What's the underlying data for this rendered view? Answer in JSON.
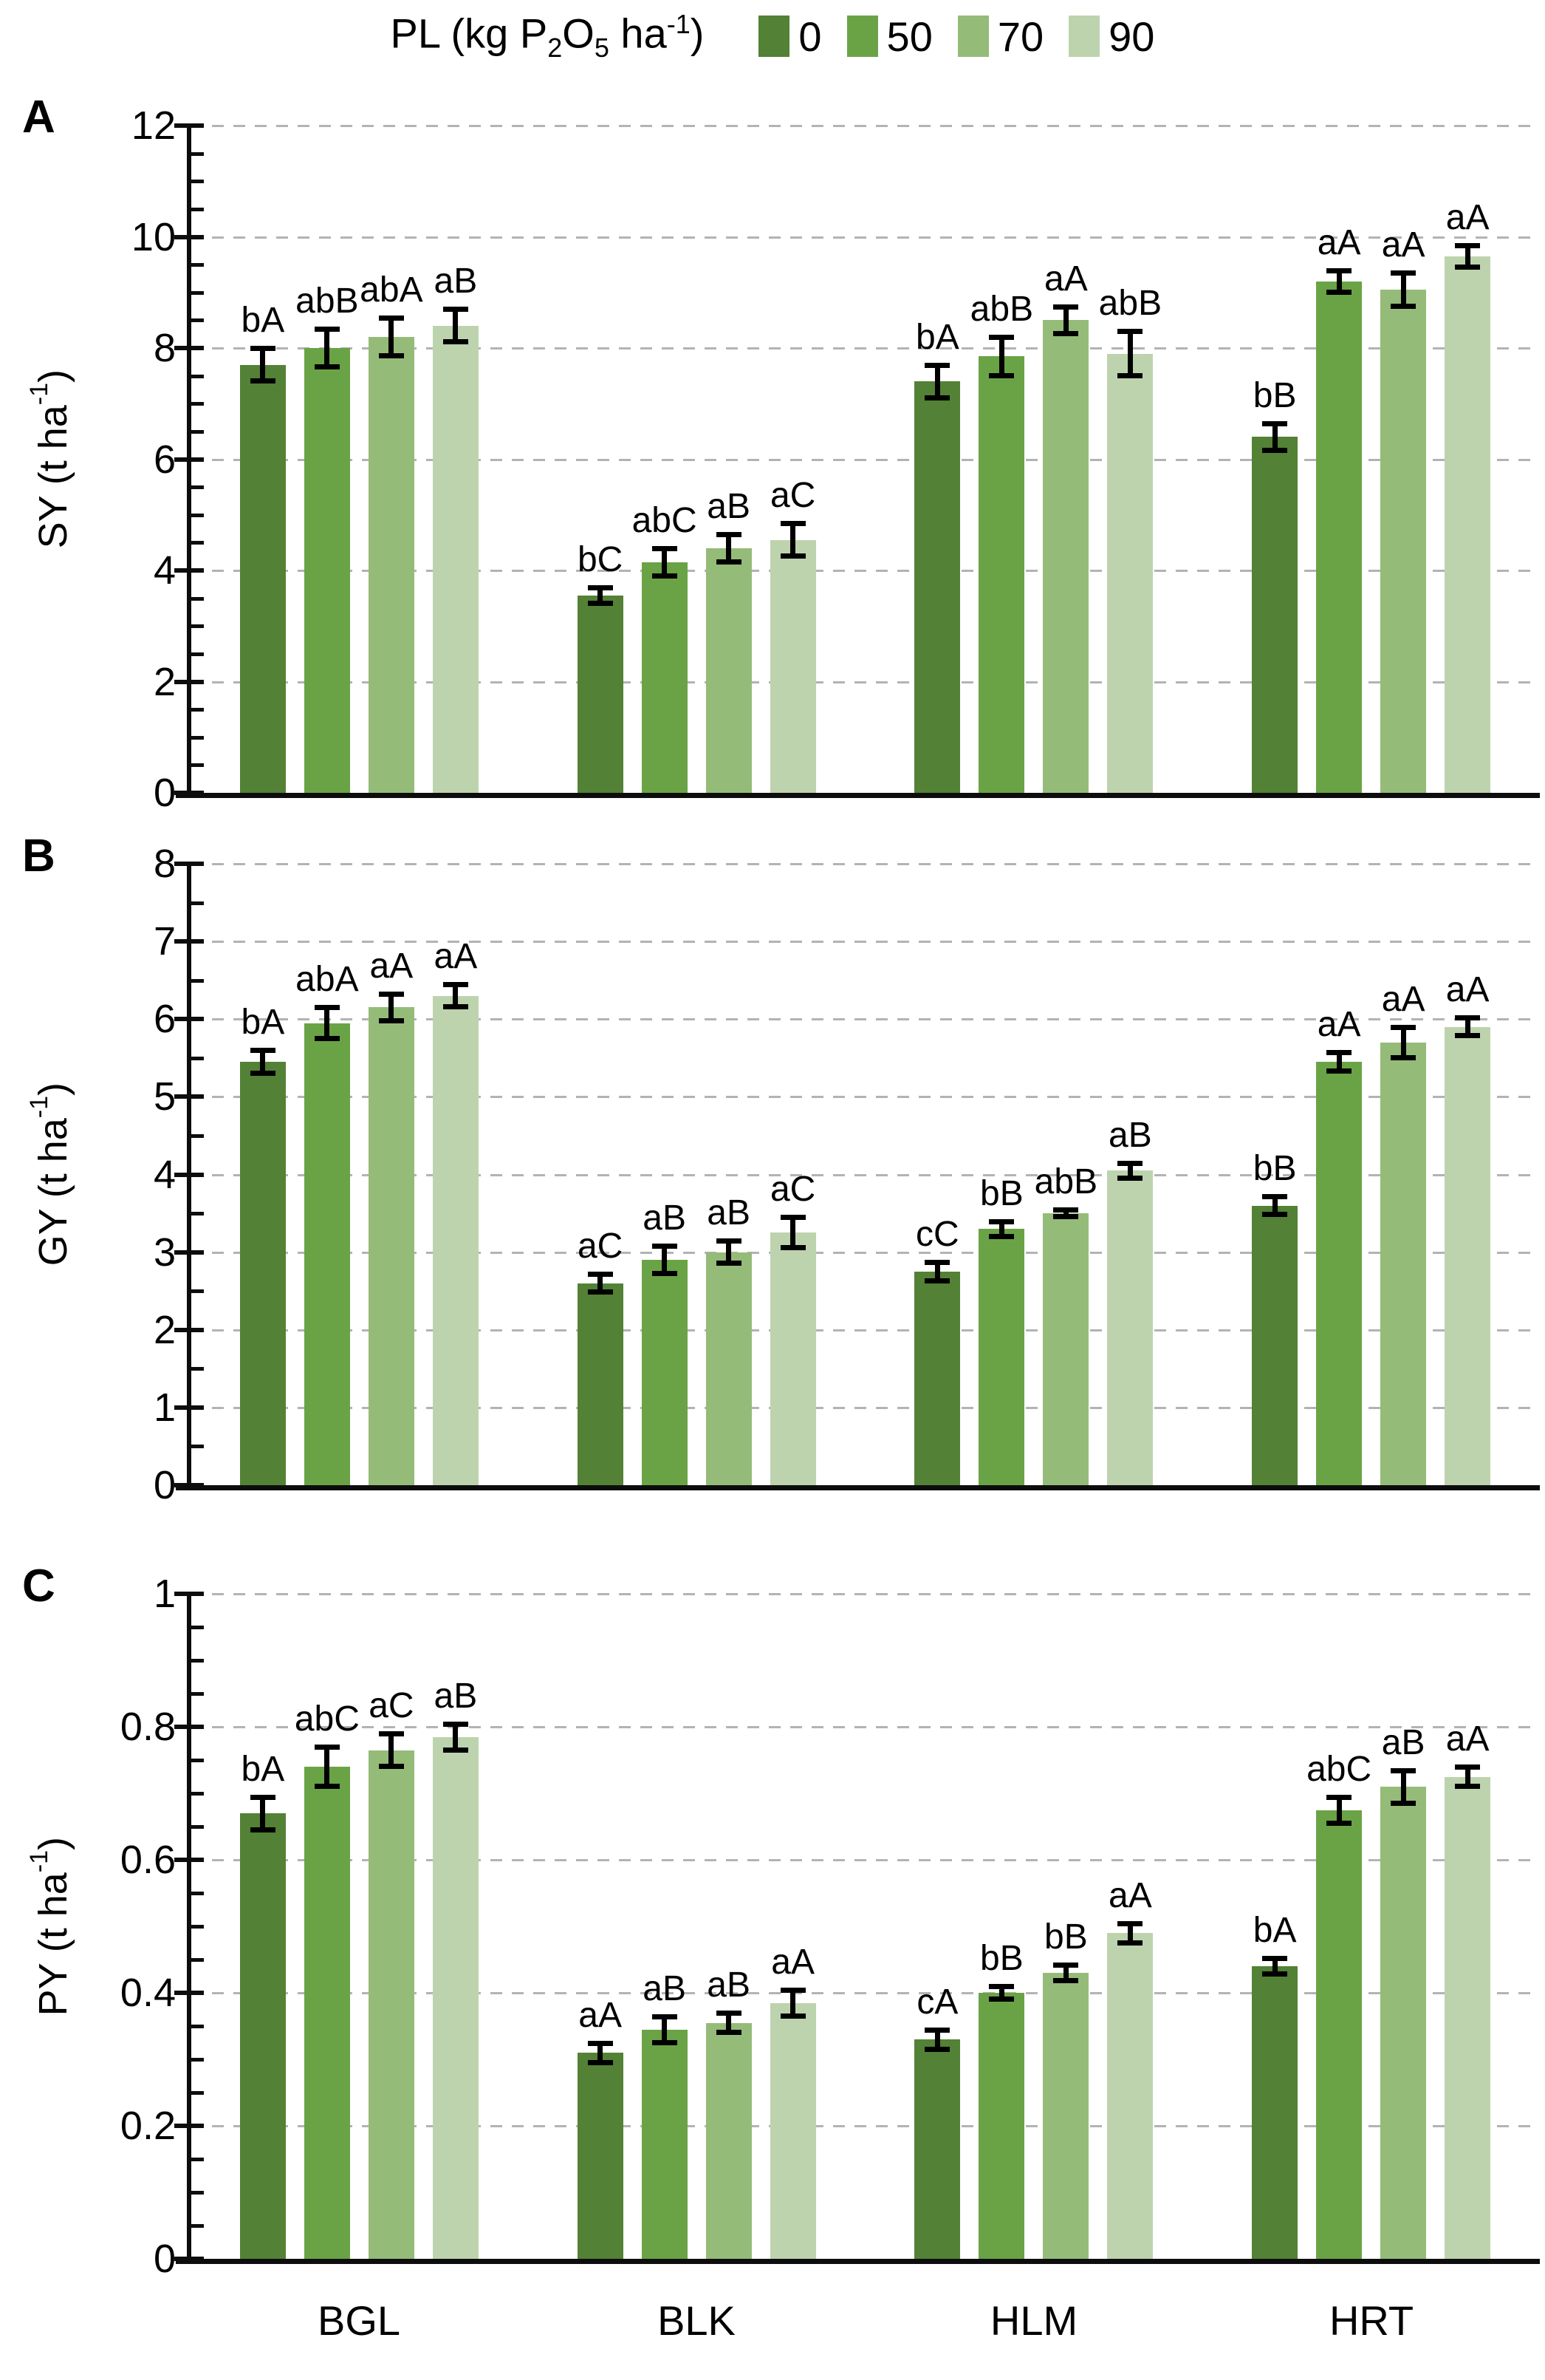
{
  "legend": {
    "title_parts": {
      "p1": "PL (kg P",
      "sub1": "2",
      "p2": "O",
      "sub2": "5",
      "p3": " ha",
      "sup": "-1",
      "p4": ")"
    },
    "title_plain": "PL (kg P2O5 ha-1)",
    "position": "top-center",
    "items": [
      {
        "label": "0",
        "color": "#538135"
      },
      {
        "label": "50",
        "color": "#6AA346"
      },
      {
        "label": "70",
        "color": "#95BB79"
      },
      {
        "label": "90",
        "color": "#BDD3AE"
      }
    ]
  },
  "x_categories": [
    "BGL",
    "BLK",
    "HLM",
    "HRT"
  ],
  "colors": {
    "axis": "#0d0d0d",
    "gridline": "#b3b3b3",
    "error_bar": "#000000",
    "text": "#000000",
    "background": "#ffffff"
  },
  "chart_data": [
    {
      "type": "bar",
      "panel_letter": "A",
      "ylabel": "SY (t ha-1)",
      "ylabel_parts": {
        "pre": "SY (t ha",
        "sup": "-1",
        "post": ")"
      },
      "ylim": [
        0,
        12
      ],
      "ytick_step": 2,
      "yminor_step": 0.5,
      "ytick_labels": [
        "0",
        "2",
        "4",
        "6",
        "8",
        "10",
        "12"
      ],
      "grid": "horizontal-dashed-at-major-ticks",
      "categories": [
        "BGL",
        "BLK",
        "HLM",
        "HRT"
      ],
      "series": [
        {
          "name": "0",
          "color": "#538135",
          "values": [
            7.7,
            3.55,
            7.4,
            6.4
          ],
          "errors": [
            0.3,
            0.15,
            0.3,
            0.25
          ],
          "sig_labels": [
            "bA",
            "bC",
            "bA",
            "bB"
          ]
        },
        {
          "name": "50",
          "color": "#6AA346",
          "values": [
            8.0,
            4.15,
            7.85,
            9.2
          ],
          "errors": [
            0.35,
            0.25,
            0.35,
            0.2
          ],
          "sig_labels": [
            "abB",
            "abC",
            "abB",
            "aA"
          ]
        },
        {
          "name": "70",
          "color": "#95BB79",
          "values": [
            8.2,
            4.4,
            8.5,
            9.05
          ],
          "errors": [
            0.35,
            0.25,
            0.25,
            0.3
          ],
          "sig_labels": [
            "abA",
            "aB",
            "aA",
            "aA"
          ]
        },
        {
          "name": "90",
          "color": "#BDD3AE",
          "values": [
            8.4,
            4.55,
            7.9,
            9.65
          ],
          "errors": [
            0.3,
            0.3,
            0.4,
            0.2
          ],
          "sig_labels": [
            "aB",
            "aC",
            "abB",
            "aA"
          ]
        }
      ]
    },
    {
      "type": "bar",
      "panel_letter": "B",
      "ylabel": "GY (t ha-1)",
      "ylabel_parts": {
        "pre": "GY (t ha",
        "sup": "-1",
        "post": ")"
      },
      "ylim": [
        0,
        8
      ],
      "ytick_step": 1,
      "yminor_step": 0.5,
      "ytick_labels": [
        "0",
        "1",
        "2",
        "3",
        "4",
        "5",
        "6",
        "7",
        "8"
      ],
      "grid": "horizontal-dashed-at-major-ticks",
      "categories": [
        "BGL",
        "BLK",
        "HLM",
        "HRT"
      ],
      "series": [
        {
          "name": "0",
          "color": "#538135",
          "values": [
            5.45,
            2.6,
            2.75,
            3.6
          ],
          "errors": [
            0.15,
            0.12,
            0.12,
            0.12
          ],
          "sig_labels": [
            "bA",
            "aC",
            "cC",
            "bB"
          ]
        },
        {
          "name": "50",
          "color": "#6AA346",
          "values": [
            5.95,
            2.9,
            3.3,
            5.45
          ],
          "errors": [
            0.2,
            0.18,
            0.1,
            0.12
          ],
          "sig_labels": [
            "abA",
            "aB",
            "bB",
            "aA"
          ]
        },
        {
          "name": "70",
          "color": "#95BB79",
          "values": [
            6.15,
            3.0,
            3.5,
            5.7
          ],
          "errors": [
            0.18,
            0.15,
            0.05,
            0.2
          ],
          "sig_labels": [
            "aA",
            "aB",
            "abB",
            "aA"
          ]
        },
        {
          "name": "90",
          "color": "#BDD3AE",
          "values": [
            6.3,
            3.25,
            4.05,
            5.9
          ],
          "errors": [
            0.15,
            0.2,
            0.1,
            0.12
          ],
          "sig_labels": [
            "aA",
            "aC",
            "aB",
            "aA"
          ]
        }
      ]
    },
    {
      "type": "bar",
      "panel_letter": "C",
      "ylabel": "PY (t ha-1)",
      "ylabel_parts": {
        "pre": "PY (t ha",
        "sup": "-1",
        "post": ")"
      },
      "ylim": [
        0,
        1
      ],
      "ytick_step": 0.2,
      "yminor_step": 0.05,
      "ytick_labels": [
        "0",
        "0.2",
        "0.4",
        "0.6",
        "0.8",
        "1"
      ],
      "grid": "horizontal-dashed-at-major-ticks",
      "categories": [
        "BGL",
        "BLK",
        "HLM",
        "HRT"
      ],
      "series": [
        {
          "name": "0",
          "color": "#538135",
          "values": [
            0.67,
            0.31,
            0.33,
            0.44
          ],
          "errors": [
            0.025,
            0.015,
            0.015,
            0.012
          ],
          "sig_labels": [
            "bA",
            "aA",
            "cA",
            "bA"
          ]
        },
        {
          "name": "50",
          "color": "#6AA346",
          "values": [
            0.74,
            0.345,
            0.4,
            0.675
          ],
          "errors": [
            0.03,
            0.02,
            0.01,
            0.02
          ],
          "sig_labels": [
            "abC",
            "aB",
            "bB",
            "abC"
          ]
        },
        {
          "name": "70",
          "color": "#95BB79",
          "values": [
            0.765,
            0.355,
            0.43,
            0.71
          ],
          "errors": [
            0.025,
            0.015,
            0.012,
            0.025
          ],
          "sig_labels": [
            "aC",
            "aB",
            "bB",
            "aB"
          ]
        },
        {
          "name": "90",
          "color": "#BDD3AE",
          "values": [
            0.785,
            0.385,
            0.49,
            0.725
          ],
          "errors": [
            0.02,
            0.02,
            0.015,
            0.015
          ],
          "sig_labels": [
            "aB",
            "aA",
            "aA",
            "aA"
          ]
        }
      ]
    }
  ]
}
